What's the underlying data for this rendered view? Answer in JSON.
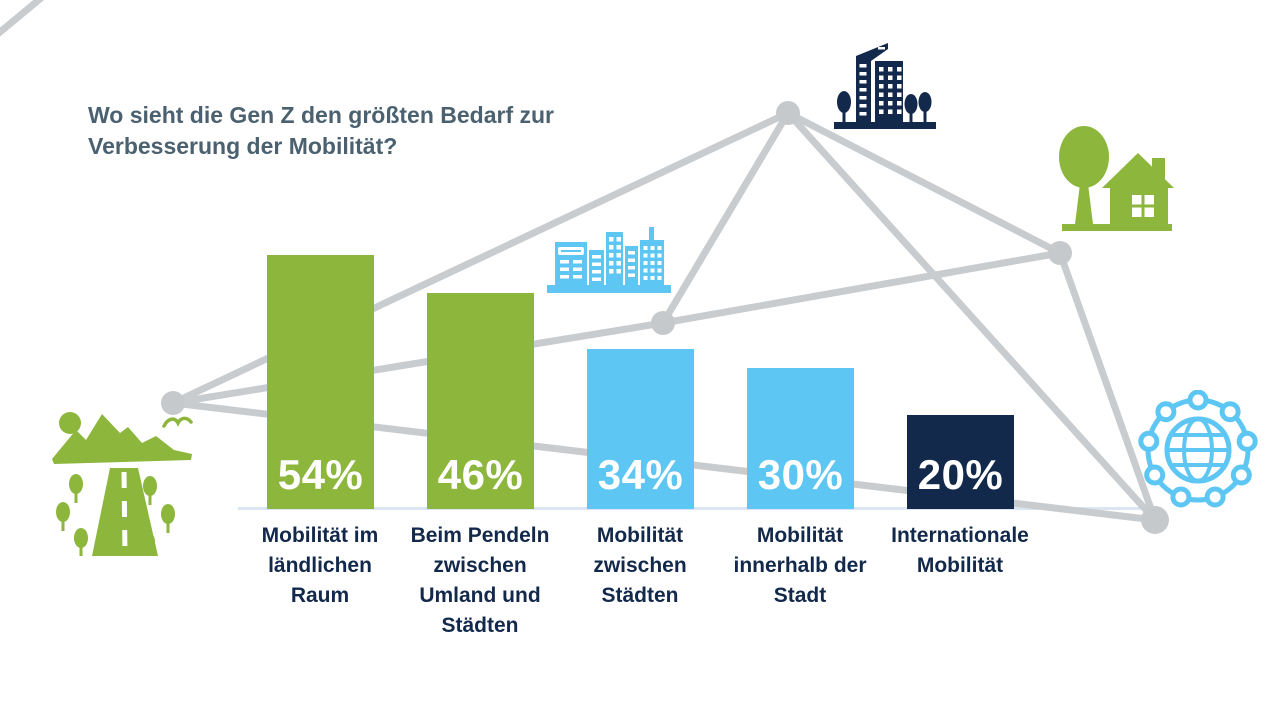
{
  "title": {
    "text": "Wo sieht die Gen Z den größten Bedarf zur\nVerbesserung der Mobilität?"
  },
  "chart_data": {
    "type": "bar",
    "title": "Wo sieht die Gen Z den größten Bedarf zur Verbesserung der Mobilität?",
    "categories": [
      "Mobilität im\nländlichen\nRaum",
      "Beim Pendeln\nzwischen\nUmland und\nStädten",
      "Mobilität\nzwischen\nStädten",
      "Mobilität\ninnerhalb der\nStadt",
      "Internationale\nMobilität"
    ],
    "values": [
      54,
      46,
      34,
      30,
      20
    ],
    "value_labels": [
      "54%",
      "46%",
      "34%",
      "30%",
      "20%"
    ],
    "bar_colors": [
      "#8db63d",
      "#8db63d",
      "#5ec6f2",
      "#5ec6f2",
      "#13294b"
    ],
    "unit": "percent",
    "ylim": [
      0,
      60
    ],
    "grid": false,
    "legend": false,
    "value_label_position": "inside-bottom"
  },
  "icons": [
    {
      "name": "rural-road-icon",
      "color": "#8db63d"
    },
    {
      "name": "city-buildings-icon",
      "color": "#13294b"
    },
    {
      "name": "city-skyline-icon",
      "color": "#5ec6f2"
    },
    {
      "name": "house-tree-icon",
      "color": "#8db63d"
    },
    {
      "name": "globe-network-icon",
      "color": "#5ec6f2"
    }
  ],
  "colors": {
    "green": "#8db63d",
    "light_blue": "#5ec6f2",
    "navy": "#13294b",
    "title_text": "#4b6170",
    "label_text": "#13294b",
    "percent_text": "#ffffff",
    "network_gray": "#c9cccf",
    "axis_baseline": "#dbe6f3",
    "background": "#ffffff"
  }
}
